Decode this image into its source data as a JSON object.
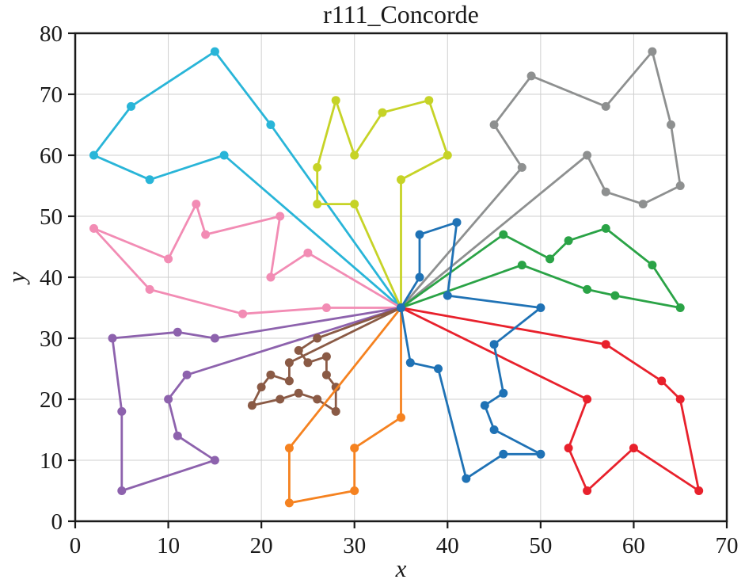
{
  "chart_data": {
    "type": "line",
    "title": "r111_Concorde",
    "xlabel": "x",
    "ylabel": "y",
    "xlim": [
      0,
      70
    ],
    "ylim": [
      0,
      80
    ],
    "xticks": [
      0,
      10,
      20,
      30,
      40,
      50,
      60,
      70
    ],
    "yticks": [
      0,
      10,
      20,
      30,
      40,
      50,
      60,
      70,
      80
    ],
    "grid": true,
    "legend": false,
    "depot": [
      35,
      35
    ],
    "description": "Multiple vehicle routing tours, each a closed loop starting and ending at the central depot (35,35)",
    "series": [
      {
        "name": "cyan-tour",
        "color": "#29b5d8",
        "points": [
          [
            35,
            35
          ],
          [
            16,
            60
          ],
          [
            8,
            56
          ],
          [
            2,
            60
          ],
          [
            6,
            68
          ],
          [
            15,
            77
          ],
          [
            21,
            65
          ],
          [
            35,
            35
          ]
        ]
      },
      {
        "name": "pink-tour",
        "color": "#f28cb4",
        "points": [
          [
            35,
            35
          ],
          [
            27,
            35
          ],
          [
            18,
            34
          ],
          [
            8,
            38
          ],
          [
            2,
            48
          ],
          [
            10,
            43
          ],
          [
            13,
            52
          ],
          [
            14,
            47
          ],
          [
            22,
            50
          ],
          [
            21,
            40
          ],
          [
            25,
            44
          ],
          [
            35,
            35
          ]
        ]
      },
      {
        "name": "purple-tour",
        "color": "#8d62ad",
        "points": [
          [
            35,
            35
          ],
          [
            15,
            30
          ],
          [
            11,
            31
          ],
          [
            4,
            30
          ],
          [
            5,
            18
          ],
          [
            5,
            5
          ],
          [
            15,
            10
          ],
          [
            11,
            14
          ],
          [
            10,
            20
          ],
          [
            12,
            24
          ],
          [
            35,
            35
          ]
        ]
      },
      {
        "name": "brown-tour",
        "color": "#8a5a45",
        "points": [
          [
            35,
            35
          ],
          [
            26,
            30
          ],
          [
            24,
            28
          ],
          [
            25,
            26
          ],
          [
            27,
            27
          ],
          [
            27,
            24
          ],
          [
            28,
            22
          ],
          [
            28,
            18
          ],
          [
            26,
            20
          ],
          [
            24,
            21
          ],
          [
            22,
            20
          ],
          [
            19,
            19
          ],
          [
            20,
            22
          ],
          [
            21,
            24
          ],
          [
            23,
            23
          ],
          [
            23,
            26
          ],
          [
            35,
            35
          ]
        ]
      },
      {
        "name": "orange-tour",
        "color": "#f58220",
        "points": [
          [
            35,
            35
          ],
          [
            35,
            17
          ],
          [
            30,
            12
          ],
          [
            30,
            5
          ],
          [
            23,
            3
          ],
          [
            23,
            12
          ],
          [
            35,
            35
          ]
        ]
      },
      {
        "name": "olive-tour",
        "color": "#c6d327",
        "points": [
          [
            35,
            35
          ],
          [
            30,
            52
          ],
          [
            26,
            52
          ],
          [
            26,
            58
          ],
          [
            28,
            69
          ],
          [
            30,
            60
          ],
          [
            33,
            67
          ],
          [
            38,
            69
          ],
          [
            40,
            60
          ],
          [
            35,
            56
          ],
          [
            35,
            35
          ]
        ]
      },
      {
        "name": "gray-tour",
        "color": "#8e9090",
        "points": [
          [
            35,
            35
          ],
          [
            48,
            58
          ],
          [
            45,
            65
          ],
          [
            49,
            73
          ],
          [
            57,
            68
          ],
          [
            62,
            77
          ],
          [
            64,
            65
          ],
          [
            65,
            55
          ],
          [
            61,
            52
          ],
          [
            57,
            54
          ],
          [
            55,
            60
          ],
          [
            35,
            35
          ]
        ]
      },
      {
        "name": "green-tour",
        "color": "#2aa346",
        "points": [
          [
            35,
            35
          ],
          [
            46,
            47
          ],
          [
            51,
            43
          ],
          [
            53,
            46
          ],
          [
            57,
            48
          ],
          [
            62,
            42
          ],
          [
            65,
            35
          ],
          [
            58,
            37
          ],
          [
            55,
            38
          ],
          [
            48,
            42
          ],
          [
            35,
            35
          ]
        ]
      },
      {
        "name": "red-tour",
        "color": "#e8212c",
        "points": [
          [
            35,
            35
          ],
          [
            57,
            29
          ],
          [
            63,
            23
          ],
          [
            65,
            20
          ],
          [
            67,
            5
          ],
          [
            60,
            12
          ],
          [
            55,
            5
          ],
          [
            53,
            12
          ],
          [
            55,
            20
          ],
          [
            35,
            35
          ]
        ]
      },
      {
        "name": "blue-tour",
        "color": "#1f72b5",
        "points": [
          [
            35,
            35
          ],
          [
            37,
            40
          ],
          [
            37,
            47
          ],
          [
            41,
            49
          ],
          [
            40,
            37
          ],
          [
            50,
            35
          ],
          [
            45,
            29
          ],
          [
            46,
            21
          ],
          [
            44,
            19
          ],
          [
            45,
            15
          ],
          [
            50,
            11
          ],
          [
            46,
            11
          ],
          [
            42,
            7
          ],
          [
            39,
            25
          ],
          [
            36,
            26
          ],
          [
            35,
            35
          ]
        ]
      }
    ]
  }
}
